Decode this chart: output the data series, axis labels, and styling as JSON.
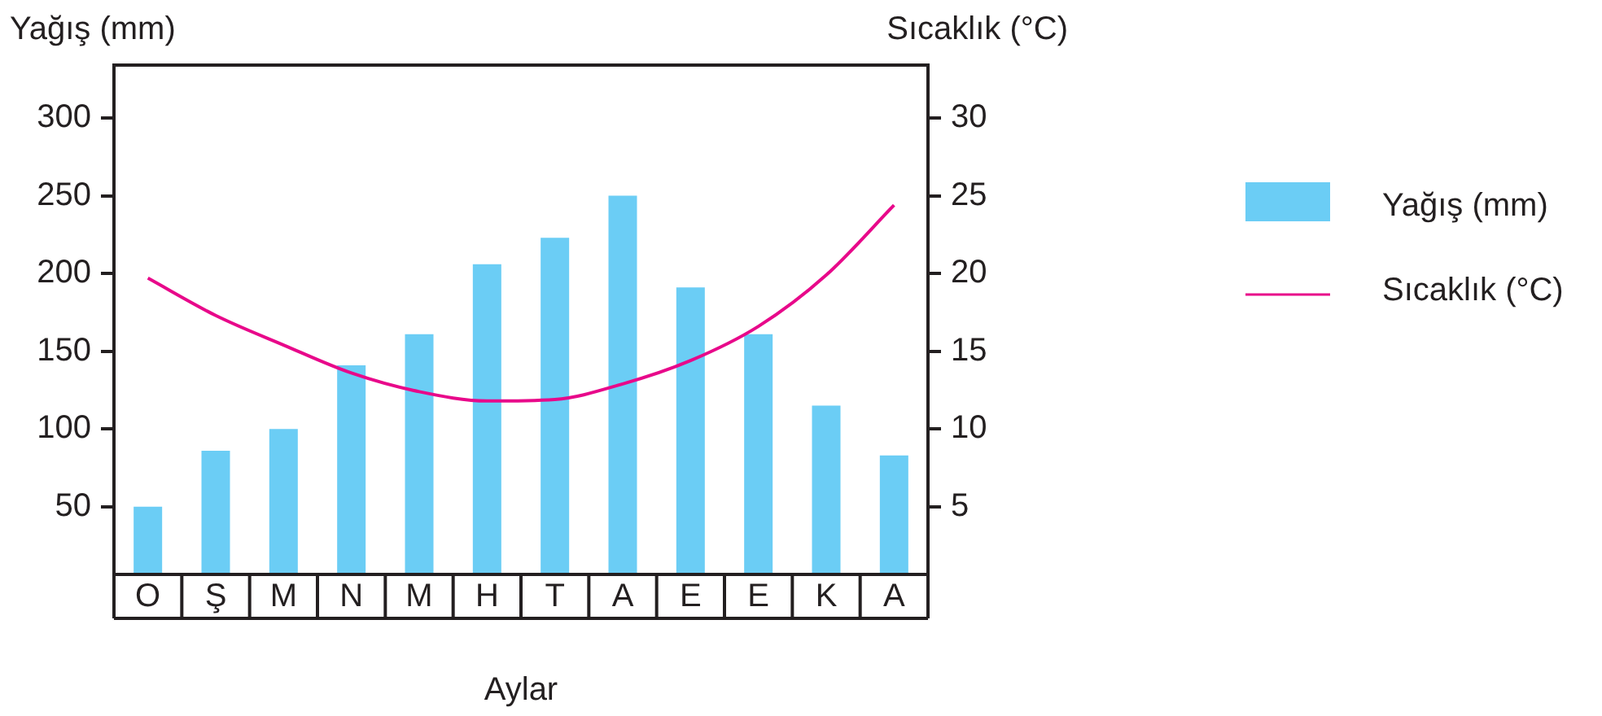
{
  "chart_data": {
    "type": "bar",
    "xlabel": "Aylar",
    "ylabel": "Yağış (mm)",
    "y2label": "Sıcaklık (°C)",
    "categories": [
      "O",
      "Ş",
      "M",
      "N",
      "M",
      "H",
      "T",
      "A",
      "E",
      "E",
      "K",
      "A"
    ],
    "series": [
      {
        "name": "Yağış (mm)",
        "color": "#6bcdf5",
        "values": [
          50,
          86,
          100,
          141,
          161,
          206,
          223,
          250,
          191,
          161,
          115,
          83
        ]
      },
      {
        "name": "Sıcaklık (°C)",
        "type": "line",
        "axis": "y2",
        "color": "#e8088a",
        "values": [
          19.7,
          17.3,
          15.4,
          13.6,
          12.4,
          11.8,
          11.9,
          12.9,
          14.4,
          16.6,
          19.9,
          24.4
        ]
      }
    ],
    "ylim": [
      6.5,
      334
    ],
    "yticks": [
      50,
      100,
      150,
      200,
      250,
      300
    ],
    "y2lim": [
      0.65,
      33.4
    ],
    "y2ticks": [
      5,
      10,
      15,
      20,
      25,
      30
    ],
    "legend": "right",
    "grid": false,
    "marker": "none"
  }
}
